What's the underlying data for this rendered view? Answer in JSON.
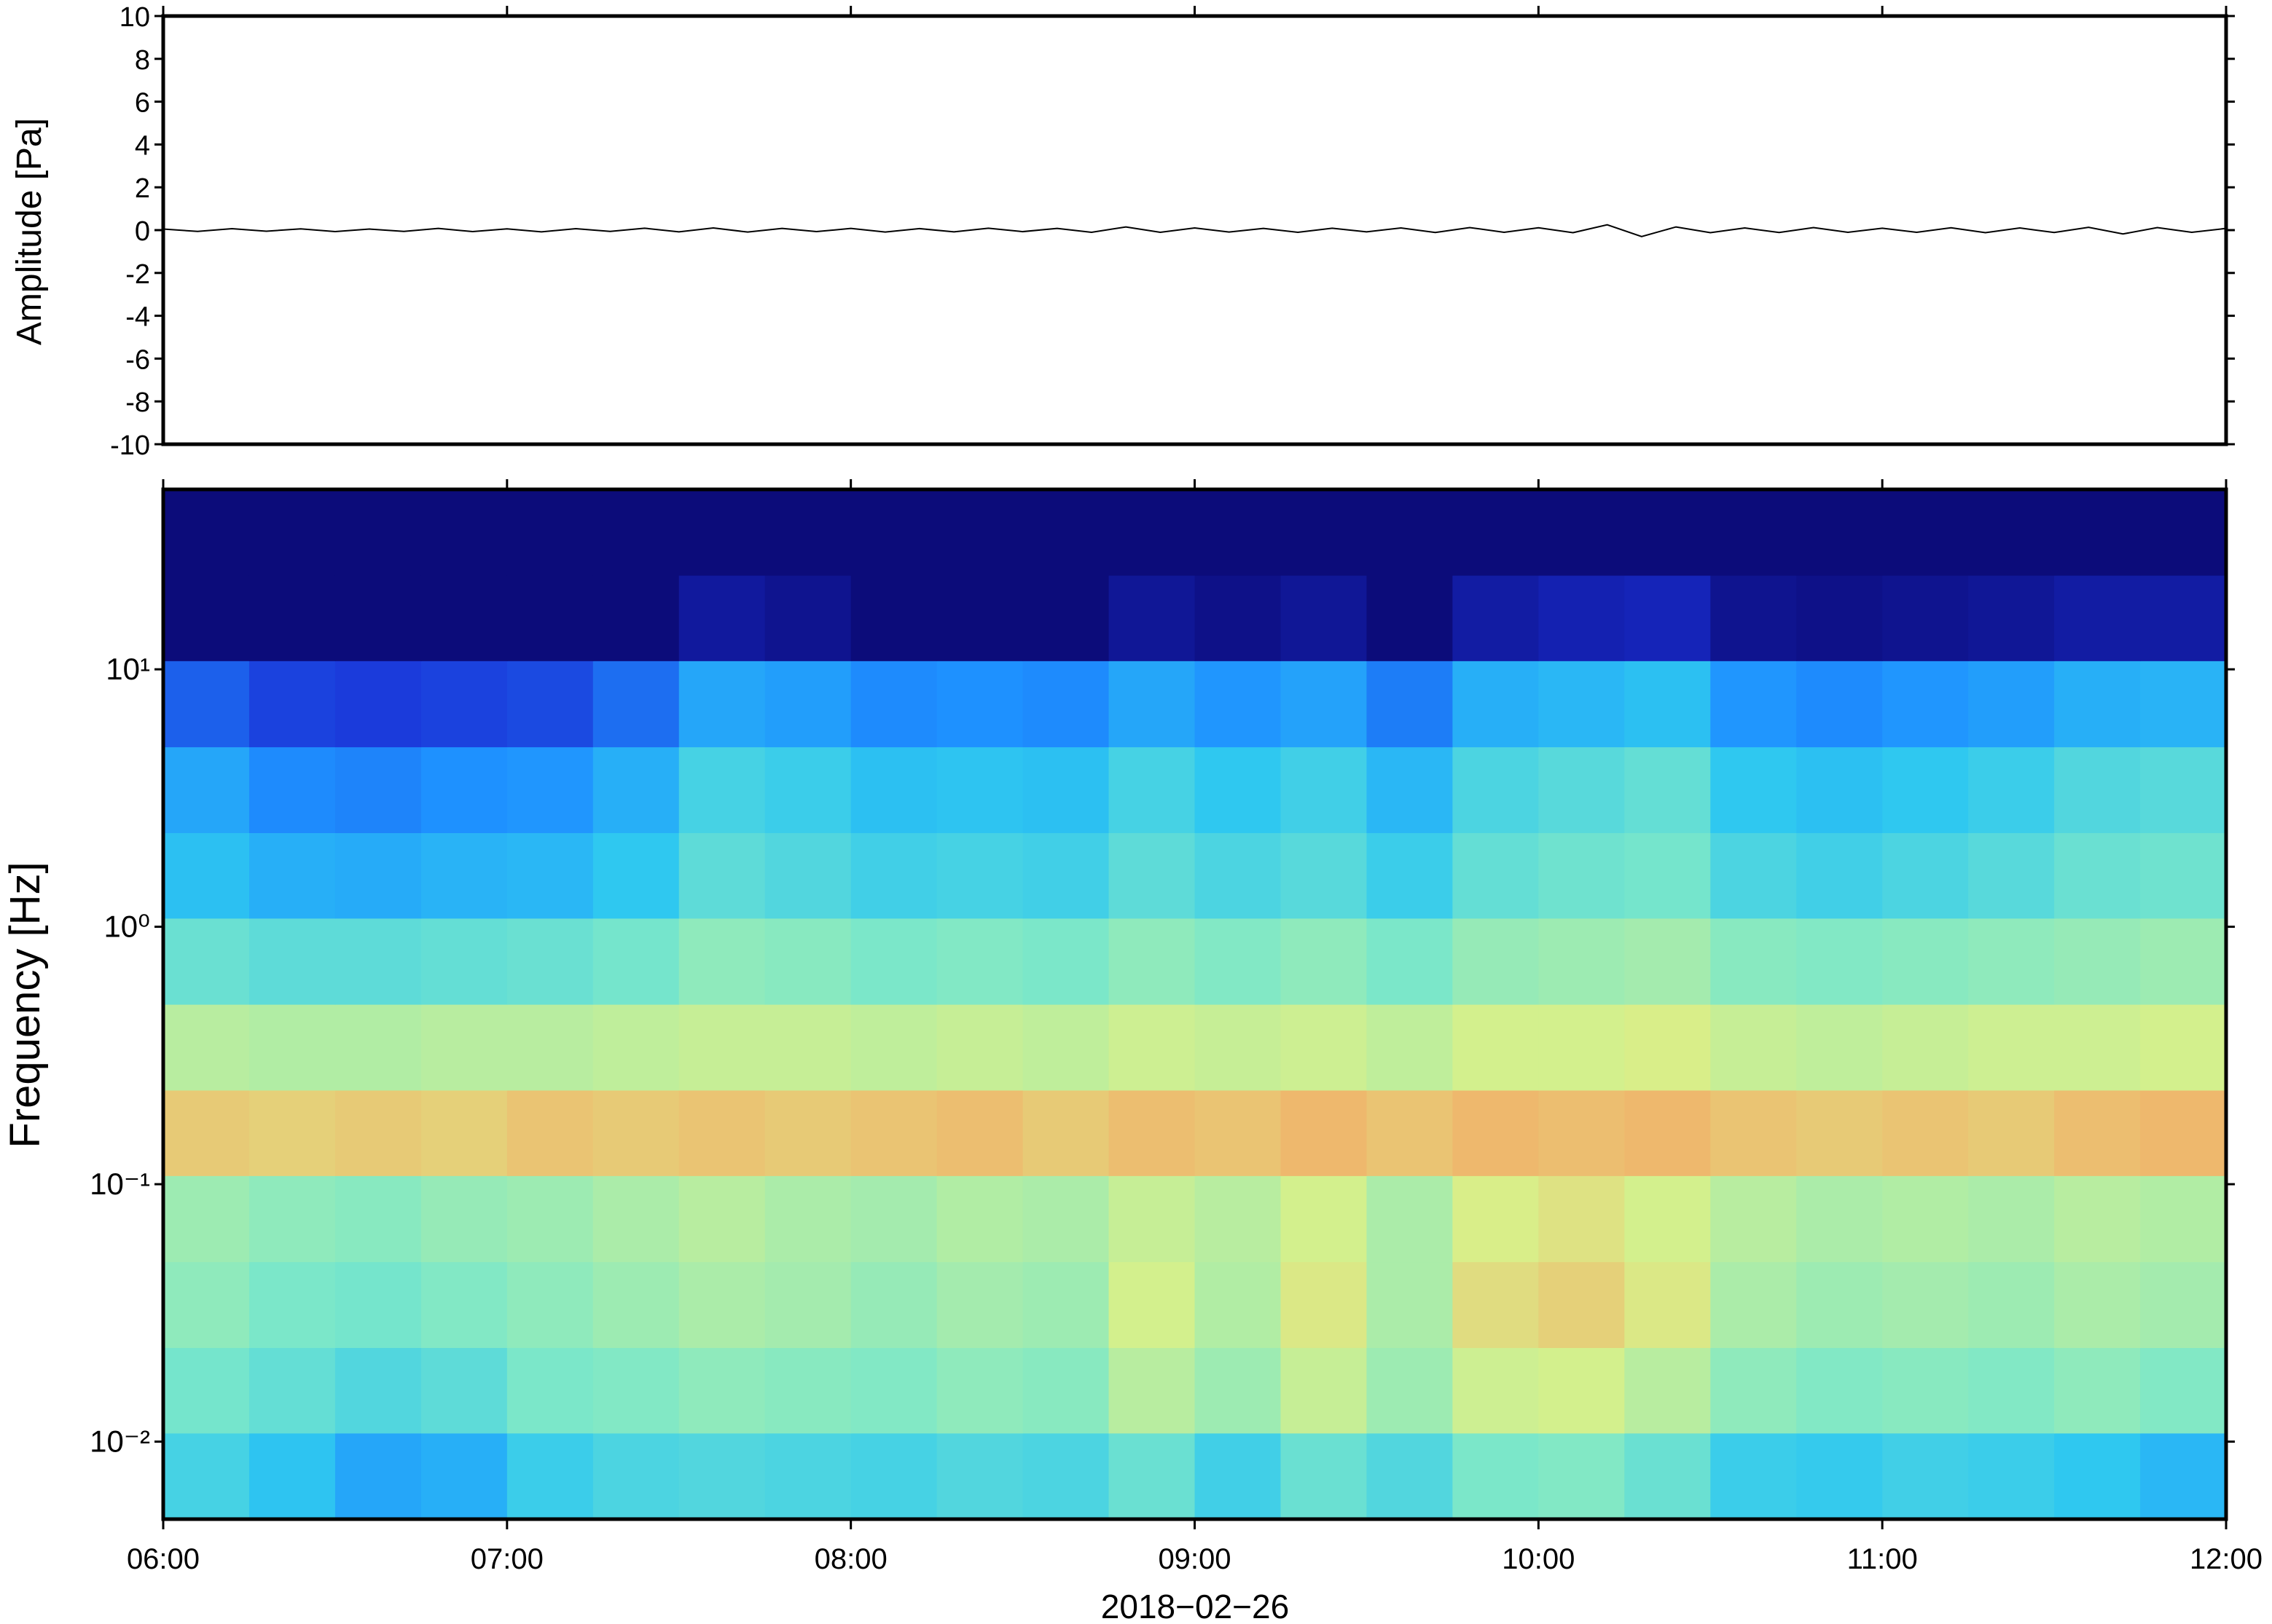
{
  "chart_data": [
    {
      "type": "line",
      "y_label": "Amplitude [Pa]",
      "xlim": [
        6,
        12
      ],
      "xticks": [
        {
          "value": 6,
          "label": "06:00"
        },
        {
          "value": 7,
          "label": "07:00"
        },
        {
          "value": 8,
          "label": "08:00"
        },
        {
          "value": 9,
          "label": "09:00"
        },
        {
          "value": 10,
          "label": "10:00"
        },
        {
          "value": 11,
          "label": "11:00"
        },
        {
          "value": 12,
          "label": "12:00"
        }
      ],
      "ylim": [
        -10,
        10
      ],
      "yticks": [
        10,
        8,
        6,
        4,
        2,
        0,
        -2,
        -4,
        -6,
        -8,
        -10
      ],
      "x": [
        6.0,
        6.1,
        6.2,
        6.3,
        6.4,
        6.5,
        6.6,
        6.7,
        6.8,
        6.9,
        7.0,
        7.1,
        7.2,
        7.3,
        7.4,
        7.5,
        7.6,
        7.7,
        7.8,
        7.9,
        8.0,
        8.1,
        8.2,
        8.3,
        8.4,
        8.5,
        8.6,
        8.7,
        8.8,
        8.9,
        9.0,
        9.1,
        9.2,
        9.3,
        9.4,
        9.5,
        9.6,
        9.7,
        9.8,
        9.9,
        10.0,
        10.1,
        10.2,
        10.3,
        10.4,
        10.5,
        10.6,
        10.7,
        10.8,
        10.9,
        11.0,
        11.1,
        11.2,
        11.3,
        11.4,
        11.5,
        11.6,
        11.7,
        11.8,
        11.9,
        12.0
      ],
      "series": [
        {
          "name": "Amplitude",
          "color": "#000000",
          "values": [
            0.05,
            -0.06,
            0.07,
            -0.05,
            0.06,
            -0.07,
            0.05,
            -0.06,
            0.08,
            -0.07,
            0.06,
            -0.08,
            0.07,
            -0.06,
            0.09,
            -0.08,
            0.1,
            -0.09,
            0.08,
            -0.07,
            0.08,
            -0.09,
            0.07,
            -0.08,
            0.09,
            -0.07,
            0.08,
            -0.1,
            0.15,
            -0.1,
            0.1,
            -0.09,
            0.08,
            -0.1,
            0.09,
            -0.08,
            0.1,
            -0.11,
            0.12,
            -0.1,
            0.11,
            -0.12,
            0.25,
            -0.3,
            0.15,
            -0.12,
            0.1,
            -0.11,
            0.12,
            -0.1,
            0.09,
            -0.1,
            0.11,
            -0.12,
            0.1,
            -0.11,
            0.13,
            -0.18,
            0.12,
            -0.1,
            0.08
          ]
        }
      ]
    },
    {
      "type": "heatmap",
      "y_label": "Frequency [Hz]",
      "x_label": "2018−02−26",
      "xlim": [
        6,
        12
      ],
      "xticks": [
        {
          "value": 6,
          "label": "06:00"
        },
        {
          "value": 7,
          "label": "07:00"
        },
        {
          "value": 8,
          "label": "08:00"
        },
        {
          "value": 9,
          "label": "09:00"
        },
        {
          "value": 10,
          "label": "10:00"
        },
        {
          "value": 11,
          "label": "11:00"
        },
        {
          "value": 12,
          "label": "12:00"
        }
      ],
      "ylim": [
        0.005,
        50
      ],
      "log_y": true,
      "yticks": [
        {
          "value": 0.01,
          "label": "10⁻²"
        },
        {
          "value": 0.1,
          "label": "10⁻¹"
        },
        {
          "value": 1,
          "label": "10⁰"
        },
        {
          "value": 10,
          "label": "10¹"
        }
      ],
      "xbins": [
        6,
        6.25,
        6.5,
        6.75,
        7,
        7.25,
        7.5,
        7.75,
        8,
        8.25,
        8.5,
        8.75,
        9,
        9.25,
        9.5,
        9.75,
        10,
        10.25,
        10.5,
        10.75,
        11,
        11.25,
        11.5,
        11.75,
        12
      ],
      "ybins": [
        0.005,
        0.0108,
        0.0232,
        0.05,
        0.108,
        0.232,
        0.5,
        1.08,
        2.32,
        5,
        10.8,
        23.2,
        50
      ],
      "zlim": [
        0,
        8
      ],
      "colors": [
        "#0c0c7a",
        "#1a2fd6",
        "#1e90ff",
        "#2fc8f0",
        "#7de8c8",
        "#d8f08a",
        "#f8a060"
      ],
      "z": [
        [
          4.4,
          3.9,
          3.2,
          3.4,
          4.2,
          4.5,
          4.6,
          4.5,
          4.4,
          4.6,
          4.5,
          5.0,
          4.3,
          5.0,
          4.6,
          5.3,
          5.4,
          5.0,
          4.2,
          4.1,
          4.3,
          4.2,
          4.0,
          3.6
        ],
        [
          5.2,
          4.9,
          4.6,
          4.8,
          5.3,
          5.4,
          5.6,
          5.5,
          5.4,
          5.6,
          5.5,
          6.2,
          5.8,
          6.4,
          5.8,
          6.5,
          6.6,
          6.2,
          5.6,
          5.4,
          5.5,
          5.4,
          5.6,
          5.4
        ],
        [
          5.6,
          5.3,
          5.2,
          5.4,
          5.6,
          5.8,
          6.0,
          5.9,
          5.7,
          5.9,
          5.8,
          6.6,
          6.1,
          6.8,
          6.0,
          7.0,
          7.2,
          6.8,
          6.0,
          5.8,
          5.9,
          5.8,
          6.0,
          5.9
        ],
        [
          5.8,
          5.6,
          5.5,
          5.7,
          5.8,
          6.0,
          6.2,
          6.0,
          5.9,
          6.1,
          6.0,
          6.4,
          6.2,
          6.6,
          6.0,
          6.7,
          6.9,
          6.6,
          6.2,
          6.0,
          6.1,
          6.0,
          6.2,
          6.1
        ],
        [
          7.3,
          7.2,
          7.3,
          7.2,
          7.4,
          7.3,
          7.4,
          7.3,
          7.4,
          7.5,
          7.3,
          7.5,
          7.4,
          7.6,
          7.4,
          7.6,
          7.5,
          7.6,
          7.4,
          7.3,
          7.4,
          7.3,
          7.5,
          7.6
        ],
        [
          6.2,
          6.1,
          6.1,
          6.2,
          6.2,
          6.3,
          6.4,
          6.4,
          6.3,
          6.4,
          6.3,
          6.5,
          6.4,
          6.5,
          6.3,
          6.6,
          6.6,
          6.7,
          6.4,
          6.3,
          6.4,
          6.5,
          6.5,
          6.6
        ],
        [
          5.0,
          4.8,
          4.8,
          4.9,
          5.0,
          5.2,
          5.6,
          5.5,
          5.3,
          5.4,
          5.3,
          5.6,
          5.4,
          5.6,
          5.3,
          5.7,
          5.8,
          5.9,
          5.5,
          5.4,
          5.5,
          5.6,
          5.7,
          5.8
        ],
        [
          3.8,
          3.4,
          3.3,
          3.5,
          3.6,
          4.0,
          4.8,
          4.6,
          4.3,
          4.4,
          4.3,
          4.8,
          4.5,
          4.7,
          4.2,
          4.9,
          5.1,
          5.2,
          4.5,
          4.3,
          4.5,
          4.7,
          5.0,
          5.1
        ],
        [
          3.2,
          2.6,
          2.5,
          2.7,
          2.8,
          3.4,
          4.4,
          4.2,
          3.8,
          3.9,
          3.8,
          4.4,
          4.0,
          4.3,
          3.6,
          4.5,
          4.7,
          4.9,
          4.0,
          3.8,
          4.0,
          4.2,
          4.6,
          4.7
        ],
        [
          2.0,
          1.6,
          1.5,
          1.6,
          1.7,
          2.2,
          3.2,
          3.0,
          2.6,
          2.7,
          2.6,
          3.2,
          2.8,
          3.1,
          2.4,
          3.4,
          3.6,
          3.8,
          2.8,
          2.6,
          2.8,
          3.0,
          3.4,
          3.5
        ],
        [
          0,
          0,
          0,
          0,
          0,
          0,
          0.5,
          0.3,
          0,
          0,
          0,
          0.4,
          0.2,
          0.4,
          0,
          0.6,
          0.8,
          0.9,
          0.3,
          0.2,
          0.3,
          0.4,
          0.6,
          0.6
        ],
        [
          0,
          0,
          0,
          0,
          0,
          0,
          0,
          0,
          0,
          0,
          0,
          0,
          0,
          0,
          0,
          0,
          0,
          0,
          0,
          0,
          0,
          0,
          0,
          0
        ]
      ]
    }
  ]
}
